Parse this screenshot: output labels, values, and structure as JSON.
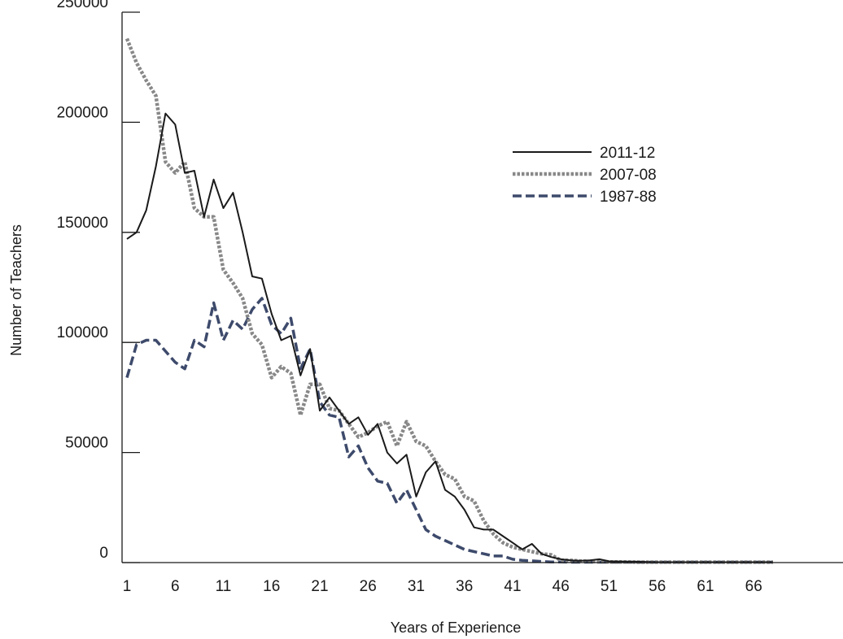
{
  "chart_data": {
    "type": "line",
    "xlabel": "Years of Experience",
    "ylabel": "Number of Teachers",
    "xlim": [
      1,
      68
    ],
    "ylim": [
      0,
      250000
    ],
    "x_ticks": [
      1,
      6,
      11,
      16,
      21,
      26,
      31,
      36,
      41,
      46,
      51,
      56,
      61,
      66
    ],
    "y_ticks": [
      0,
      50000,
      100000,
      150000,
      200000,
      250000
    ],
    "legend_position": "upper-right",
    "grid": false,
    "x": [
      1,
      2,
      3,
      4,
      5,
      6,
      7,
      8,
      9,
      10,
      11,
      12,
      13,
      14,
      15,
      16,
      17,
      18,
      19,
      20,
      21,
      22,
      23,
      24,
      25,
      26,
      27,
      28,
      29,
      30,
      31,
      32,
      33,
      34,
      35,
      36,
      37,
      38,
      39,
      40,
      41,
      42,
      43,
      44,
      45,
      46,
      47,
      48,
      49,
      50,
      51,
      52,
      53,
      54,
      55,
      56,
      57,
      58,
      59,
      60,
      61,
      62,
      63,
      64,
      65,
      66,
      67,
      68
    ],
    "series": [
      {
        "name": "2011-12",
        "color": "#1a1a1a",
        "style": "solid",
        "values": [
          147000,
          150000,
          160000,
          180000,
          204000,
          199000,
          177000,
          178000,
          157000,
          174000,
          161000,
          168000,
          150000,
          130000,
          129000,
          113000,
          101000,
          103000,
          85000,
          97000,
          69000,
          75000,
          69000,
          63000,
          66000,
          58000,
          63000,
          50000,
          45000,
          49000,
          30000,
          41000,
          46000,
          33000,
          30000,
          24000,
          16000,
          15000,
          15000,
          12000,
          9000,
          6000,
          8500,
          4000,
          2500,
          1500,
          1000,
          800,
          1000,
          1500,
          600,
          500,
          400,
          400,
          300,
          200,
          200,
          200,
          200,
          200,
          200,
          200,
          200,
          200,
          200,
          200,
          200,
          200
        ]
      },
      {
        "name": "2007-08",
        "color": "#888888",
        "style": "dotted",
        "values": [
          238000,
          227000,
          219000,
          212000,
          182000,
          177000,
          182000,
          161000,
          157000,
          157000,
          133000,
          127000,
          120000,
          104000,
          99000,
          84000,
          89000,
          86000,
          67000,
          81000,
          81000,
          70000,
          69000,
          63000,
          57000,
          59000,
          62000,
          64000,
          53000,
          64000,
          55000,
          53000,
          46000,
          40000,
          38000,
          30000,
          28000,
          19000,
          13000,
          9000,
          7000,
          6000,
          5000,
          4000,
          3500,
          1000,
          1000,
          700,
          500,
          400,
          300,
          300,
          300,
          200,
          200,
          200,
          200,
          200,
          200,
          200,
          200,
          200,
          200,
          200,
          200,
          200,
          200,
          200
        ]
      },
      {
        "name": "1987-88",
        "color": "#3d4a6b",
        "style": "dashed",
        "values": [
          84000,
          99000,
          101000,
          101000,
          96000,
          91000,
          88000,
          101000,
          98000,
          118000,
          101000,
          110000,
          106000,
          115000,
          120000,
          108000,
          104000,
          111000,
          88000,
          97000,
          73000,
          67000,
          66000,
          48000,
          53000,
          43000,
          37000,
          36000,
          27000,
          33000,
          24000,
          15000,
          12000,
          10000,
          8000,
          6000,
          5000,
          4000,
          3000,
          3000,
          1500,
          1000,
          800,
          500,
          300,
          300,
          200,
          200,
          200,
          200,
          200,
          200,
          200,
          200,
          200,
          200,
          200,
          200,
          200,
          200,
          200,
          200,
          200,
          200,
          200,
          200,
          200,
          200
        ]
      }
    ]
  }
}
